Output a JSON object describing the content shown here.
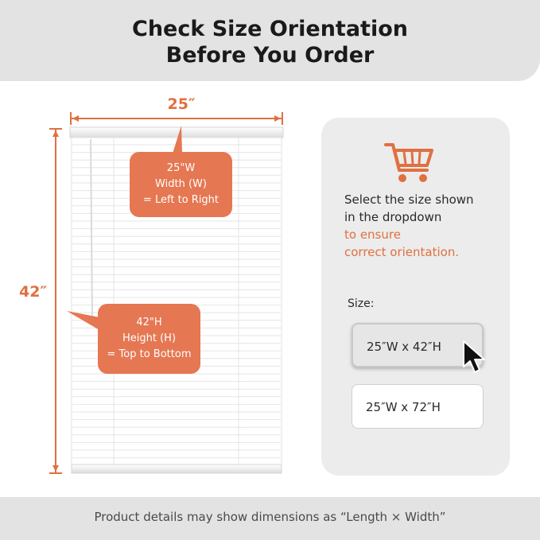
{
  "header": {
    "title_line1": "Check Size Orientation",
    "title_line2": "Before You Order"
  },
  "blind": {
    "width_label": "25″",
    "height_label": "42″",
    "width_callout": {
      "line1": "25\"W",
      "line2": "Width (W)",
      "line3": "= Left to Right"
    },
    "height_callout": {
      "line1": "42\"H",
      "line2": "Height (H)",
      "line3": "= Top to Bottom"
    }
  },
  "card": {
    "text_line1": "Select the size shown",
    "text_line2": "in the dropdown",
    "accent_line1": "to ensure",
    "accent_line2": "correct orientation.",
    "size_label": "Size:",
    "options": [
      {
        "label": "25″W x 42″H",
        "selected": true
      },
      {
        "label": "25″W x 72″H",
        "selected": false
      }
    ]
  },
  "footer": {
    "text": "Product details may show dimensions as “Length × Width”"
  },
  "colors": {
    "accent": "#e07040",
    "callout": "#e57752",
    "panel": "#ececec",
    "header": "#e3e3e3"
  },
  "icons": [
    "shopping-cart-icon",
    "mouse-pointer-icon"
  ]
}
